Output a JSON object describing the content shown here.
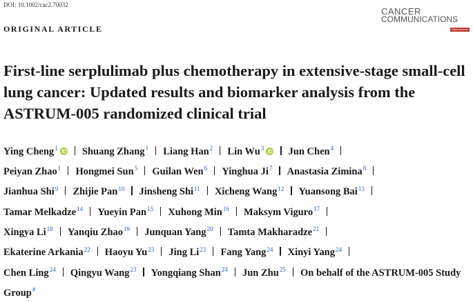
{
  "header": {
    "doi": "DOI: 10.1002/cac2.70032",
    "article_type": "ORIGINAL ARTICLE",
    "logo": {
      "line1": "CANCER",
      "line2": "COMMUNICATIONS",
      "badge": "Open Access"
    }
  },
  "title": "First-line serplulimab plus chemotherapy in extensive-stage small-cell lung cancer: Updated results and biomarker analysis from the ASTRUM-005 randomized clinical trial",
  "authors": [
    {
      "name": "Ying Cheng",
      "aff": "1",
      "orcid": true
    },
    {
      "name": "Shuang Zhang",
      "aff": "1"
    },
    {
      "name": "Liang Han",
      "aff": "2"
    },
    {
      "name": "Lin Wu",
      "aff": "3",
      "orcid": true
    },
    {
      "name": "Jun Chen",
      "aff": "4"
    },
    {
      "name": "Peiyan Zhao",
      "aff": "1"
    },
    {
      "name": "Hongmei Sun",
      "aff": "5"
    },
    {
      "name": "Guilan Wen",
      "aff": "6"
    },
    {
      "name": "Yinghua Ji",
      "aff": "7"
    },
    {
      "name": "Anastasia Zimina",
      "aff": "8"
    },
    {
      "name": "Jianhua Shi",
      "aff": "9"
    },
    {
      "name": "Zhijie Pan",
      "aff": "10"
    },
    {
      "name": "Jinsheng Shi",
      "aff": "11"
    },
    {
      "name": "Xicheng Wang",
      "aff": "12"
    },
    {
      "name": "Yuansong Bai",
      "aff": "13"
    },
    {
      "name": "Tamar Melkadze",
      "aff": "14"
    },
    {
      "name": "Yueyin Pan",
      "aff": "15"
    },
    {
      "name": "Xuhong Min",
      "aff": "16"
    },
    {
      "name": "Maksym Viguro",
      "aff": "17"
    },
    {
      "name": "Xingya Li",
      "aff": "18"
    },
    {
      "name": "Yanqiu Zhao",
      "aff": "19"
    },
    {
      "name": "Junquan Yang",
      "aff": "20"
    },
    {
      "name": "Tamta Makharadze",
      "aff": "21"
    },
    {
      "name": "Ekaterine Arkania",
      "aff": "22"
    },
    {
      "name": "Haoyu Yu",
      "aff": "23"
    },
    {
      "name": "Jing Li",
      "aff": "23"
    },
    {
      "name": "Fang Yang",
      "aff": "24"
    },
    {
      "name": "Xinyi Yang",
      "aff": "24"
    },
    {
      "name": "Chen Ling",
      "aff": "24"
    },
    {
      "name": "Qingyu Wang",
      "aff": "23"
    },
    {
      "name": "Yongqiang Shan",
      "aff": "24"
    },
    {
      "name": "Jun Zhu",
      "aff": "25"
    },
    {
      "name": "On behalf of the ASTRUM-005 Study Group",
      "aff": "#"
    }
  ]
}
